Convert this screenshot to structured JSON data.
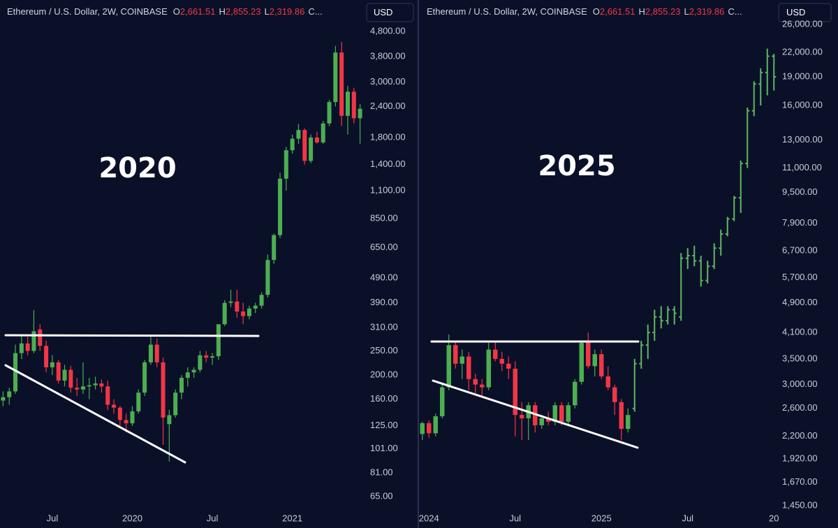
{
  "chart_data": [
    {
      "type": "candlestick",
      "header": {
        "title": "Ethereum / U.S. Dollar, 2W, COINBASE",
        "fields": [
          {
            "key": "O",
            "value": "2,661.51"
          },
          {
            "key": "H",
            "value": "2,855.23"
          },
          {
            "key": "L",
            "value": "2,319.86"
          }
        ],
        "more": "C..."
      },
      "currency": "USD",
      "annotation": "2020",
      "log_scale": true,
      "ylim": [
        57.5,
        5290
      ],
      "yticks": [
        {
          "value": 4800,
          "label": "4,800.00"
        },
        {
          "value": 3800,
          "label": "3,800.00"
        },
        {
          "value": 3000,
          "label": "3,000.00"
        },
        {
          "value": 2400,
          "label": "2,400.00"
        },
        {
          "value": 1800,
          "label": "1,800.00"
        },
        {
          "value": 1400,
          "label": "1,400.00"
        },
        {
          "value": 1100,
          "label": "1,100.00"
        },
        {
          "value": 850,
          "label": "850.00"
        },
        {
          "value": 650,
          "label": "650.00"
        },
        {
          "value": 490,
          "label": "490.00"
        },
        {
          "value": 390,
          "label": "390.00"
        },
        {
          "value": 310,
          "label": "310.00"
        },
        {
          "value": 250,
          "label": "250.00"
        },
        {
          "value": 200,
          "label": "200.00"
        },
        {
          "value": 160,
          "label": "160.00"
        },
        {
          "value": 125,
          "label": "125.00"
        },
        {
          "value": 101,
          "label": "101.00"
        },
        {
          "value": 81,
          "label": "81.00"
        },
        {
          "value": 65,
          "label": "65.00"
        }
      ],
      "categories": [
        null,
        null,
        null,
        null,
        null,
        null,
        null,
        null,
        "Jul",
        null,
        null,
        null,
        null,
        null,
        null,
        null,
        null,
        null,
        null,
        null,
        null,
        "2020",
        null,
        null,
        null,
        null,
        null,
        null,
        null,
        null,
        null,
        null,
        null,
        null,
        "Jul",
        null,
        null,
        null,
        null,
        null,
        null,
        null,
        null,
        null,
        null,
        null,
        null,
        "2021",
        null,
        null,
        null,
        null,
        null,
        null,
        null,
        null,
        null,
        null,
        null
      ],
      "series": [
        {
          "style": "candle",
          "up_color": "#4caf50",
          "down_color": "#f23645",
          "open": [
            158,
            163,
            172,
            245,
            268,
            250,
            305,
            262,
            215,
            225,
            190,
            210,
            178,
            175,
            180,
            182,
            185,
            180,
            152,
            148,
            132,
            128,
            143,
            170,
            225,
            265,
            225,
            127,
            138,
            170,
            195,
            205,
            210,
            240,
            235,
            238,
            320,
            390,
            395,
            360,
            345,
            370,
            380,
            420,
            580,
            730,
            1230,
            1600,
            1780,
            1930,
            1450,
            1800,
            1720,
            2050,
            2500,
            3950,
            2200,
            2750,
            2150
          ],
          "high": [
            172,
            178,
            265,
            290,
            285,
            365,
            320,
            275,
            240,
            230,
            220,
            218,
            195,
            225,
            195,
            197,
            192,
            190,
            160,
            150,
            140,
            150,
            175,
            230,
            285,
            280,
            235,
            145,
            175,
            200,
            215,
            215,
            250,
            250,
            245,
            320,
            400,
            440,
            440,
            390,
            380,
            390,
            430,
            610,
            740,
            1300,
            1650,
            1850,
            2040,
            1960,
            1850,
            1900,
            2100,
            2550,
            4200,
            4360,
            2900,
            2850,
            2450
          ],
          "low": [
            150,
            152,
            168,
            232,
            240,
            245,
            250,
            205,
            200,
            185,
            180,
            170,
            165,
            168,
            160,
            175,
            170,
            145,
            140,
            125,
            118,
            125,
            140,
            165,
            220,
            215,
            105,
            90,
            135,
            160,
            180,
            195,
            205,
            225,
            220,
            230,
            315,
            375,
            340,
            320,
            335,
            355,
            370,
            410,
            560,
            710,
            1100,
            1550,
            1700,
            1400,
            1420,
            1700,
            1700,
            2000,
            2400,
            2000,
            1850,
            2050,
            1700
          ],
          "close": [
            163,
            172,
            245,
            268,
            250,
            300,
            262,
            215,
            225,
            190,
            210,
            178,
            175,
            180,
            182,
            185,
            180,
            152,
            148,
            132,
            128,
            143,
            170,
            225,
            265,
            225,
            135,
            138,
            170,
            195,
            205,
            210,
            240,
            235,
            238,
            320,
            390,
            395,
            360,
            345,
            370,
            380,
            420,
            580,
            730,
            1230,
            1600,
            1780,
            1930,
            1450,
            1800,
            1720,
            2050,
            2500,
            3950,
            2200,
            2750,
            2150,
            2350
          ]
        }
      ]
    },
    {
      "type": "candlestick",
      "header": {
        "title": "Ethereum / U.S. Dollar, 2W, COINBASE",
        "fields": [
          {
            "key": "O",
            "value": "2,661.51"
          },
          {
            "key": "H",
            "value": "2,855.23"
          },
          {
            "key": "L",
            "value": "2,319.86"
          }
        ],
        "more": "C..."
      },
      "currency": "USD",
      "annotation": "2025",
      "log_scale": true,
      "ylim": [
        1415,
        26565
      ],
      "yticks": [
        {
          "value": 26000,
          "label": "26,000.00"
        },
        {
          "value": 22000,
          "label": "22,000.00"
        },
        {
          "value": 19000,
          "label": "19,000.00"
        },
        {
          "value": 16000,
          "label": "16,000.00"
        },
        {
          "value": 13000,
          "label": "13,000.00"
        },
        {
          "value": 11000,
          "label": "11,000.00"
        },
        {
          "value": 9500,
          "label": "9,500.00"
        },
        {
          "value": 7900,
          "label": "7,900.00"
        },
        {
          "value": 6700,
          "label": "6,700.00"
        },
        {
          "value": 5700,
          "label": "5,700.00"
        },
        {
          "value": 4900,
          "label": "4,900.00"
        },
        {
          "value": 4100,
          "label": "4,100.00"
        },
        {
          "value": 3500,
          "label": "3,500.00"
        },
        {
          "value": 3000,
          "label": "3,000.00"
        },
        {
          "value": 2600,
          "label": "2,600.00"
        },
        {
          "value": 2200,
          "label": "2,200.00"
        },
        {
          "value": 1920,
          "label": "1,920.00"
        },
        {
          "value": 1670,
          "label": "1,670.00"
        },
        {
          "value": 1450,
          "label": "1,450.00"
        }
      ],
      "categories": [
        null,
        "2024",
        null,
        null,
        null,
        null,
        null,
        null,
        null,
        null,
        null,
        null,
        null,
        null,
        "Jul",
        null,
        null,
        null,
        null,
        null,
        null,
        null,
        null,
        null,
        null,
        null,
        null,
        "2025",
        null,
        null,
        null,
        null,
        null,
        null,
        null,
        null,
        null,
        null,
        null,
        null,
        "Jul",
        null,
        null,
        null,
        null,
        null,
        null,
        null,
        null,
        null,
        null,
        null,
        null,
        "20"
      ],
      "series": [
        {
          "style": "candle",
          "up_color": "#4caf50",
          "down_color": "#f23645",
          "open": [
            2230,
            2380,
            2240,
            2480,
            2950,
            3800,
            3400,
            3550,
            3100,
            3000,
            2950,
            3700,
            3500,
            3400,
            3300,
            2500,
            2450,
            2650,
            2350,
            2450,
            2400,
            2650,
            2400,
            2650,
            3050,
            3900,
            3350,
            3600,
            3150,
            2950,
            2700,
            2300,
            null,
            null,
            null,
            null,
            null,
            null,
            null,
            null,
            null,
            null,
            null,
            null,
            null,
            null,
            null,
            null,
            null,
            null,
            null,
            null,
            null,
            null
          ],
          "high": [
            2400,
            2420,
            2520,
            3000,
            4050,
            3900,
            3700,
            3650,
            3200,
            3100,
            3850,
            3900,
            3650,
            3550,
            3450,
            2700,
            2700,
            2700,
            2500,
            2550,
            2700,
            2700,
            2700,
            3100,
            3900,
            4100,
            3700,
            3700,
            3350,
            3000,
            2750,
            2600,
            null,
            null,
            null,
            null,
            null,
            null,
            null,
            null,
            null,
            null,
            null,
            null,
            null,
            null,
            null,
            null,
            null,
            null,
            null,
            null,
            null,
            null
          ],
          "low": [
            2150,
            2180,
            2200,
            2450,
            2900,
            3300,
            3100,
            2900,
            2850,
            2800,
            2900,
            3450,
            3250,
            3100,
            2200,
            2150,
            2150,
            2250,
            2300,
            2350,
            2350,
            2350,
            2350,
            2600,
            3000,
            3300,
            3150,
            3100,
            2900,
            2500,
            2150,
            2250,
            null,
            null,
            null,
            null,
            null,
            null,
            null,
            null,
            null,
            null,
            null,
            null,
            null,
            null,
            null,
            null,
            null,
            null,
            null,
            null,
            null,
            null
          ],
          "close": [
            2380,
            2240,
            2480,
            2950,
            3800,
            3400,
            3550,
            3100,
            3000,
            2950,
            3700,
            3500,
            3400,
            3300,
            2500,
            2450,
            2650,
            2350,
            2450,
            2400,
            2650,
            2400,
            2650,
            3050,
            3850,
            3350,
            3600,
            3150,
            2950,
            2700,
            2300,
            2500,
            null,
            null,
            null,
            null,
            null,
            null,
            null,
            null,
            null,
            null,
            null,
            null,
            null,
            null,
            null,
            null,
            null,
            null,
            null,
            null,
            null,
            null
          ]
        },
        {
          "style": "bar",
          "up_color": "#5fb760",
          "down_color": "#5fb760",
          "open": [
            null,
            null,
            null,
            null,
            null,
            null,
            null,
            null,
            null,
            null,
            null,
            null,
            null,
            null,
            null,
            null,
            null,
            null,
            null,
            null,
            null,
            null,
            null,
            null,
            null,
            null,
            null,
            null,
            null,
            null,
            null,
            null,
            2600,
            3400,
            3800,
            4100,
            4500,
            4400,
            4700,
            4500,
            6400,
            6500,
            6300,
            5600,
            6100,
            6800,
            7400,
            8100,
            9200,
            11300,
            15500,
            18200,
            19500,
            21500
          ],
          "high": [
            null,
            null,
            null,
            null,
            null,
            null,
            null,
            null,
            null,
            null,
            null,
            null,
            null,
            null,
            null,
            null,
            null,
            null,
            null,
            null,
            null,
            null,
            null,
            null,
            null,
            null,
            null,
            null,
            null,
            null,
            null,
            null,
            3500,
            3900,
            4300,
            4700,
            4800,
            4800,
            4800,
            6600,
            6800,
            6900,
            6500,
            6300,
            7000,
            7600,
            8200,
            9300,
            11500,
            15800,
            18500,
            20000,
            22500,
            21800
          ],
          "low": [
            null,
            null,
            null,
            null,
            null,
            null,
            null,
            null,
            null,
            null,
            null,
            null,
            null,
            null,
            null,
            null,
            null,
            null,
            null,
            null,
            null,
            null,
            null,
            null,
            null,
            null,
            null,
            null,
            null,
            null,
            null,
            null,
            2550,
            3300,
            3500,
            3900,
            4200,
            4300,
            4300,
            4400,
            6000,
            6100,
            5400,
            5500,
            6000,
            6500,
            7300,
            8000,
            8400,
            11000,
            15000,
            16000,
            17000,
            17500
          ],
          "close": [
            null,
            null,
            null,
            null,
            null,
            null,
            null,
            null,
            null,
            null,
            null,
            null,
            null,
            null,
            null,
            null,
            null,
            null,
            null,
            null,
            null,
            null,
            null,
            null,
            null,
            null,
            null,
            null,
            null,
            null,
            null,
            null,
            3400,
            3800,
            4100,
            4500,
            4400,
            4700,
            4600,
            6400,
            6500,
            6300,
            5600,
            6100,
            6800,
            7400,
            8100,
            9200,
            11300,
            15500,
            18200,
            19500,
            21500,
            19000
          ]
        }
      ]
    }
  ]
}
